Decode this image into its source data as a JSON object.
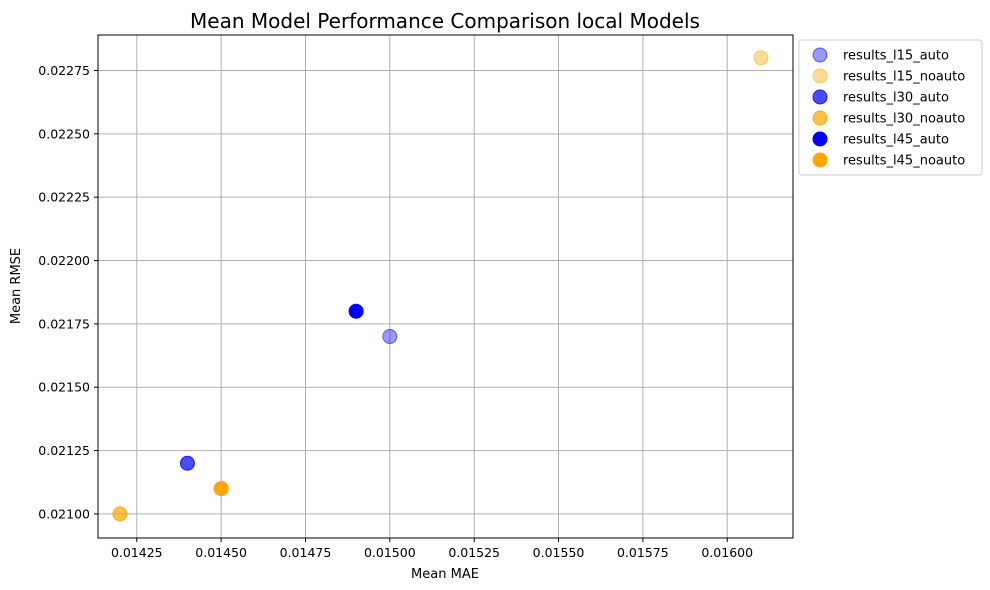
{
  "chart_data": {
    "type": "scatter",
    "title": "Mean Model Performance Comparison local Models",
    "xlabel": "Mean MAE",
    "ylabel": "Mean RMSE",
    "xlim": [
      0.014135,
      0.016195
    ],
    "ylim": [
      0.020905,
      0.02289
    ],
    "xticks": [
      0.01425,
      0.0145,
      0.01475,
      0.015,
      0.01525,
      0.0155,
      0.01575,
      0.016
    ],
    "xtick_labels": [
      "0.01425",
      "0.01450",
      "0.01475",
      "0.01500",
      "0.01525",
      "0.01550",
      "0.01575",
      "0.01600"
    ],
    "yticks": [
      0.021,
      0.02125,
      0.0215,
      0.02175,
      0.022,
      0.02225,
      0.0225,
      0.02275
    ],
    "ytick_labels": [
      "0.02100",
      "0.02125",
      "0.02150",
      "0.02175",
      "0.02200",
      "0.02225",
      "0.02250",
      "0.02275"
    ],
    "grid": true,
    "legend_position": "outside-top-right",
    "series": [
      {
        "name": "results_l15_auto",
        "color": "#0000ff",
        "opacity": 0.4,
        "points": [
          {
            "x": 0.015,
            "y": 0.0217
          }
        ]
      },
      {
        "name": "results_l15_noauto",
        "color": "#ffa500",
        "opacity": 0.4,
        "points": [
          {
            "x": 0.0161,
            "y": 0.0228
          }
        ]
      },
      {
        "name": "results_l30_auto",
        "color": "#0000ff",
        "opacity": 0.7,
        "points": [
          {
            "x": 0.0144,
            "y": 0.0212
          }
        ]
      },
      {
        "name": "results_l30_noauto",
        "color": "#ffa500",
        "opacity": 0.7,
        "points": [
          {
            "x": 0.0142,
            "y": 0.021
          },
          {
            "x": 0.0145,
            "y": 0.0211
          }
        ]
      },
      {
        "name": "results_l45_auto",
        "color": "#0000ff",
        "opacity": 1.0,
        "points": [
          {
            "x": 0.0149,
            "y": 0.0218
          }
        ]
      },
      {
        "name": "results_l45_noauto",
        "color": "#ffa500",
        "opacity": 1.0,
        "points": [
          {
            "x": 0.0145,
            "y": 0.0211
          }
        ]
      }
    ]
  }
}
